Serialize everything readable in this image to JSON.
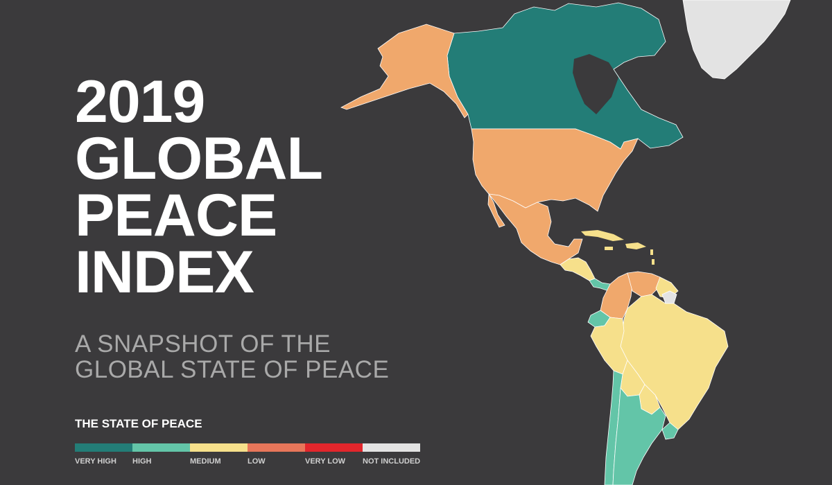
{
  "title": {
    "line1": "2019",
    "line2": "GLOBAL",
    "line3": "PEACE",
    "line4": "INDEX"
  },
  "subtitle": {
    "line1": "A SNAPSHOT OF THE",
    "line2": "GLOBAL STATE OF PEACE"
  },
  "legend": {
    "title": "THE STATE OF PEACE",
    "items": [
      {
        "label": "VERY HIGH",
        "color": "#237d77"
      },
      {
        "label": "HIGH",
        "color": "#63c5a8"
      },
      {
        "label": "MEDIUM",
        "color": "#f6e08b"
      },
      {
        "label": "LOW",
        "color": "#e7765a"
      },
      {
        "label": "VERY LOW",
        "color": "#e2262c"
      },
      {
        "label": "NOT INCLUDED",
        "color": "#e3e3e3"
      }
    ]
  },
  "map": {
    "background": "#3b3a3c",
    "regions": [
      {
        "name": "Canada",
        "level": "VERY HIGH"
      },
      {
        "name": "Alaska",
        "level": "LOW"
      },
      {
        "name": "United States",
        "level": "LOW"
      },
      {
        "name": "Mexico",
        "level": "LOW"
      },
      {
        "name": "Central America",
        "level": "MEDIUM"
      },
      {
        "name": "Costa Rica / Panama",
        "level": "HIGH"
      },
      {
        "name": "Caribbean",
        "level": "MEDIUM"
      },
      {
        "name": "Colombia",
        "level": "LOW"
      },
      {
        "name": "Venezuela",
        "level": "LOW"
      },
      {
        "name": "Guyana / Suriname",
        "level": "MEDIUM"
      },
      {
        "name": "French Guiana",
        "level": "NOT INCLUDED"
      },
      {
        "name": "Ecuador",
        "level": "HIGH"
      },
      {
        "name": "Peru",
        "level": "MEDIUM"
      },
      {
        "name": "Brazil",
        "level": "MEDIUM"
      },
      {
        "name": "Bolivia",
        "level": "MEDIUM"
      },
      {
        "name": "Paraguay",
        "level": "MEDIUM"
      },
      {
        "name": "Chile",
        "level": "HIGH"
      },
      {
        "name": "Argentina",
        "level": "HIGH"
      },
      {
        "name": "Uruguay",
        "level": "HIGH"
      },
      {
        "name": "Greenland",
        "level": "NOT INCLUDED"
      }
    ]
  }
}
